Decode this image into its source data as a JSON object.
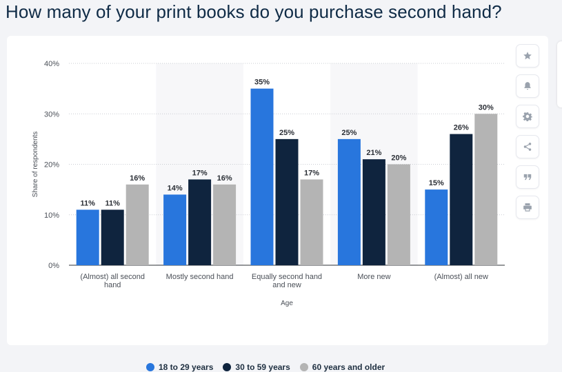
{
  "title": "How many of your print books do you purchase second hand?",
  "toolbar": {
    "icons": [
      "star-icon",
      "bell-icon",
      "gear-icon",
      "share-icon",
      "quote-icon",
      "print-icon"
    ]
  },
  "colors": {
    "series1": "#2876dd",
    "series2": "#0f243e",
    "series3": "#b4b4b4"
  },
  "chart_data": {
    "type": "bar",
    "title": "How many of your print books do you purchase second hand?",
    "xlabel": "Age",
    "ylabel": "Share of respondents",
    "categories": [
      "(Almost) all second hand",
      "Mostly second hand",
      "Equally second hand and new",
      "More new",
      "(Almost) all new"
    ],
    "category_lines": [
      [
        "(Almost) all second",
        "hand"
      ],
      [
        "Mostly second hand"
      ],
      [
        "Equally second hand",
        "and new"
      ],
      [
        "More new"
      ],
      [
        "(Almost) all new"
      ]
    ],
    "series": [
      {
        "name": "18 to 29 years",
        "values": [
          11,
          14,
          35,
          25,
          15
        ]
      },
      {
        "name": "30 to 59 years",
        "values": [
          11,
          17,
          25,
          21,
          26
        ]
      },
      {
        "name": "60 years and older",
        "values": [
          16,
          16,
          17,
          20,
          30
        ]
      }
    ],
    "ylim": [
      0,
      40
    ],
    "yticks": [
      0,
      10,
      20,
      30,
      40
    ],
    "tick_suffix": "%",
    "value_suffix": "%",
    "grid": true,
    "legend_position": "bottom"
  }
}
